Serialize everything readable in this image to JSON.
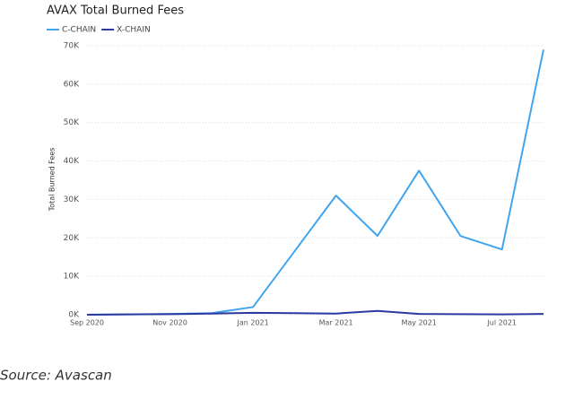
{
  "chart_data": {
    "type": "line",
    "title": "AVAX Total Burned Fees",
    "y_label": "Total Burned Fees",
    "categories": [
      "Sep 2020",
      null,
      "Nov 2020",
      null,
      "Jan 2021",
      null,
      "Mar 2021",
      null,
      "May 2021",
      null,
      "Jul 2021",
      null
    ],
    "series": [
      {
        "name": "C-CHAIN",
        "color": "#41a5ee",
        "values": [
          0,
          100,
          200,
          400,
          2000,
          16500,
          31000,
          20500,
          37500,
          20500,
          17000,
          69000
        ]
      },
      {
        "name": "X-CHAIN",
        "color": "#2b3a9e",
        "values": [
          0,
          100,
          150,
          300,
          500,
          400,
          300,
          1000,
          200,
          150,
          100,
          200
        ]
      }
    ],
    "ylim": [
      0,
      70000
    ],
    "yticks": [
      {
        "value": 0,
        "label": "0K"
      },
      {
        "value": 10000,
        "label": "10K"
      },
      {
        "value": 20000,
        "label": "20K"
      },
      {
        "value": 30000,
        "label": "30K"
      },
      {
        "value": 40000,
        "label": "40K"
      },
      {
        "value": 50000,
        "label": "50K"
      },
      {
        "value": 60000,
        "label": "60K"
      },
      {
        "value": 70000,
        "label": "70K"
      }
    ],
    "grid": true
  },
  "source": "Source: Avascan"
}
